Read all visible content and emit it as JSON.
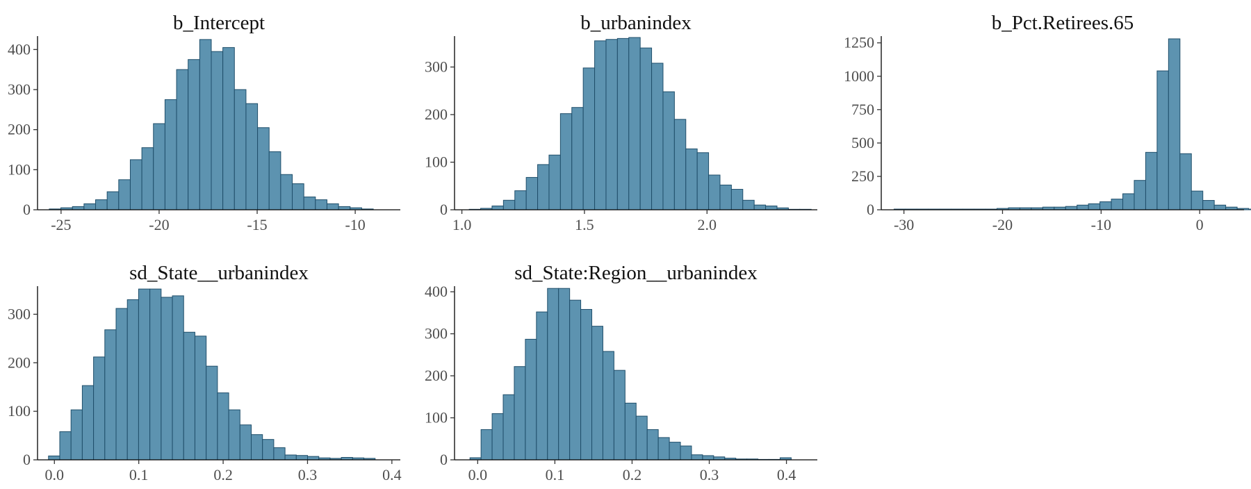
{
  "colors": {
    "bar_fill": "#5d93b0",
    "bar_stroke": "#1f4e6a",
    "background": "#ffffff"
  },
  "chart_data": [
    {
      "type": "bar",
      "title": "b_Intercept",
      "grid": false,
      "bin_start": -25.6,
      "bin_width": 0.59,
      "counts": [
        2,
        5,
        8,
        15,
        25,
        45,
        75,
        125,
        155,
        215,
        275,
        350,
        375,
        425,
        395,
        405,
        300,
        265,
        205,
        145,
        88,
        65,
        32,
        25,
        15,
        8,
        5,
        2
      ],
      "xlim": [
        -26.2,
        -7.7
      ],
      "ylim": [
        0,
        430
      ],
      "x_ticks": [
        -25,
        -20,
        -15,
        -10
      ],
      "x_tick_labels": [
        "-25",
        "-20",
        "-15",
        "-10"
      ],
      "y_ticks": [
        0,
        100,
        200,
        300,
        400
      ],
      "y_tick_labels": [
        "0",
        "100",
        "200",
        "300",
        "400"
      ]
    },
    {
      "type": "bar",
      "title": "b_urbanindex",
      "grid": false,
      "bin_start": 1.03,
      "bin_width": 0.0465,
      "counts": [
        1,
        3,
        8,
        20,
        40,
        68,
        95,
        115,
        202,
        215,
        298,
        355,
        358,
        360,
        362,
        340,
        308,
        248,
        190,
        128,
        120,
        73,
        52,
        43,
        20,
        10,
        8,
        4,
        1,
        1
      ],
      "xlim": [
        0.97,
        2.45
      ],
      "ylim": [
        0,
        362
      ],
      "x_ticks": [
        1.0,
        1.5,
        2.0
      ],
      "x_tick_labels": [
        "1.0",
        "1.5",
        "2.0"
      ],
      "y_ticks": [
        0,
        100,
        200,
        300
      ],
      "y_tick_labels": [
        "0",
        "100",
        "200",
        "300"
      ]
    },
    {
      "type": "bar",
      "title": "b_Pct.Retirees.65",
      "grid": false,
      "bin_start": -31.0,
      "bin_width": 1.16,
      "counts": [
        5,
        5,
        5,
        5,
        5,
        5,
        5,
        5,
        5,
        10,
        15,
        15,
        15,
        20,
        20,
        25,
        35,
        45,
        60,
        80,
        120,
        220,
        430,
        1040,
        1280,
        420,
        140,
        70,
        35,
        20,
        10,
        5
      ],
      "xlim": [
        -32.3,
        4.5
      ],
      "ylim": [
        0,
        1290
      ],
      "x_ticks": [
        -30,
        -20,
        -10,
        0
      ],
      "x_tick_labels": [
        "-30",
        "-20",
        "-10",
        "0"
      ],
      "y_ticks": [
        0,
        250,
        500,
        750,
        1000,
        1250
      ],
      "y_tick_labels": [
        "0",
        "250",
        "500",
        "750",
        "1000",
        "1250"
      ]
    },
    {
      "type": "bar",
      "title": "sd_State__urbanindex",
      "grid": false,
      "bin_start": -0.007,
      "bin_width": 0.01335,
      "counts": [
        8,
        58,
        103,
        153,
        212,
        268,
        312,
        330,
        352,
        352,
        335,
        338,
        263,
        255,
        193,
        138,
        103,
        72,
        52,
        42,
        25,
        10,
        9,
        7,
        4,
        3,
        5,
        4,
        3
      ],
      "xlim": [
        -0.02,
        0.41
      ],
      "ylim": [
        0,
        355
      ],
      "x_ticks": [
        0.0,
        0.1,
        0.2,
        0.3,
        0.4
      ],
      "x_tick_labels": [
        "0.0",
        "0.1",
        "0.2",
        "0.3",
        "0.4"
      ],
      "y_ticks": [
        0,
        100,
        200,
        300
      ],
      "y_tick_labels": [
        "0",
        "100",
        "200",
        "300"
      ]
    },
    {
      "type": "bar",
      "title": "sd_State:Region__urbanindex",
      "grid": false,
      "bin_start": -0.01,
      "bin_width": 0.01435,
      "counts": [
        5,
        72,
        110,
        155,
        222,
        287,
        352,
        408,
        408,
        380,
        358,
        318,
        258,
        213,
        135,
        104,
        72,
        53,
        42,
        33,
        12,
        10,
        7,
        4,
        2,
        2,
        1,
        1,
        5
      ],
      "xlim": [
        -0.03,
        0.44
      ],
      "ylim": [
        0,
        410
      ],
      "x_ticks": [
        0.0,
        0.1,
        0.2,
        0.3,
        0.4
      ],
      "x_tick_labels": [
        "0.0",
        "0.1",
        "0.2",
        "0.3",
        "0.4"
      ],
      "y_ticks": [
        0,
        100,
        200,
        300,
        400
      ],
      "y_tick_labels": [
        "0",
        "100",
        "200",
        "300",
        "400"
      ]
    }
  ]
}
